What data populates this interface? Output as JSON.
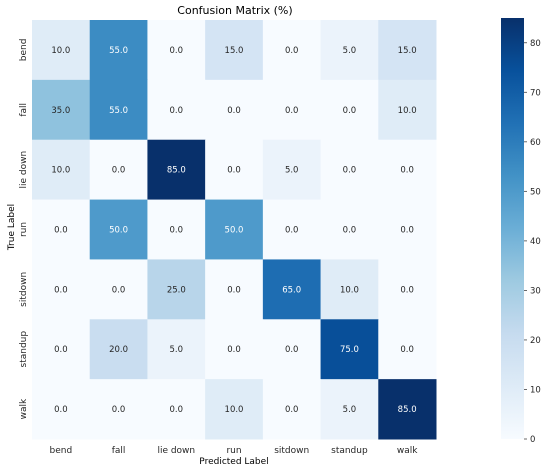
{
  "chart_data": {
    "type": "heatmap",
    "title": "Confusion Matrix (%)",
    "xlabel": "Predicted Label",
    "ylabel": "True Label",
    "x_categories": [
      "bend",
      "fall",
      "lie down",
      "run",
      "sitdown",
      "standup",
      "walk"
    ],
    "y_categories": [
      "bend",
      "fall",
      "lie down",
      "run",
      "sitdown",
      "standup",
      "walk"
    ],
    "values": [
      [
        10.0,
        55.0,
        0.0,
        15.0,
        0.0,
        5.0,
        15.0
      ],
      [
        35.0,
        55.0,
        0.0,
        0.0,
        0.0,
        0.0,
        10.0
      ],
      [
        10.0,
        0.0,
        85.0,
        0.0,
        5.0,
        0.0,
        0.0
      ],
      [
        0.0,
        50.0,
        0.0,
        50.0,
        0.0,
        0.0,
        0.0
      ],
      [
        0.0,
        0.0,
        25.0,
        0.0,
        65.0,
        10.0,
        0.0
      ],
      [
        0.0,
        20.0,
        5.0,
        0.0,
        0.0,
        75.0,
        0.0
      ],
      [
        0.0,
        0.0,
        0.0,
        10.0,
        0.0,
        5.0,
        85.0
      ]
    ],
    "value_format": "0.0",
    "colormap": "Blues",
    "vmin": 0,
    "vmax": 85,
    "colorbar_ticks": [
      0,
      10,
      20,
      30,
      40,
      50,
      60,
      70,
      80
    ]
  }
}
